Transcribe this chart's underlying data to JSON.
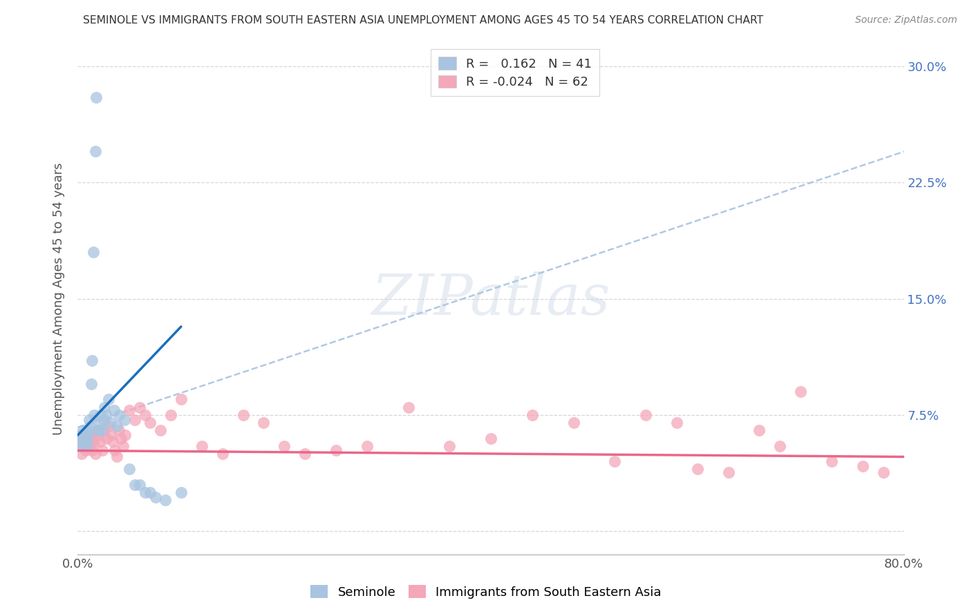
{
  "title": "SEMINOLE VS IMMIGRANTS FROM SOUTH EASTERN ASIA UNEMPLOYMENT AMONG AGES 45 TO 54 YEARS CORRELATION CHART",
  "source": "Source: ZipAtlas.com",
  "ylabel": "Unemployment Among Ages 45 to 54 years",
  "xlim": [
    0.0,
    0.8
  ],
  "ylim": [
    -0.015,
    0.315
  ],
  "xticks": [
    0.0,
    0.1,
    0.2,
    0.3,
    0.4,
    0.5,
    0.6,
    0.7,
    0.8
  ],
  "xticklabels": [
    "0.0%",
    "",
    "",
    "",
    "",
    "",
    "",
    "",
    "80.0%"
  ],
  "yticks": [
    0.0,
    0.075,
    0.15,
    0.225,
    0.3
  ],
  "yticklabels": [
    "",
    "7.5%",
    "15.0%",
    "22.5%",
    "30.0%"
  ],
  "seminole_R": 0.162,
  "seminole_N": 41,
  "immigrants_R": -0.024,
  "immigrants_N": 62,
  "seminole_color": "#a8c4e0",
  "immigrants_color": "#f4a7b9",
  "seminole_line_color": "#1a6fbb",
  "immigrants_line_color": "#e8688a",
  "dashed_line_color": "#a8c4e0",
  "watermark": "ZIPatlas",
  "background_color": "#ffffff",
  "seminole_line_x0": 0.0,
  "seminole_line_y0": 0.062,
  "seminole_line_x1": 0.1,
  "seminole_line_y1": 0.132,
  "dashed_line_x0": 0.0,
  "dashed_line_y0": 0.067,
  "dashed_line_x1": 0.8,
  "dashed_line_y1": 0.245,
  "immigrants_line_x0": 0.0,
  "immigrants_line_y0": 0.052,
  "immigrants_line_x1": 0.8,
  "immigrants_line_y1": 0.048,
  "seminole_x": [
    0.003,
    0.003,
    0.004,
    0.005,
    0.005,
    0.006,
    0.007,
    0.008,
    0.009,
    0.01,
    0.01,
    0.011,
    0.012,
    0.013,
    0.014,
    0.015,
    0.016,
    0.017,
    0.018,
    0.019,
    0.02,
    0.021,
    0.022,
    0.023,
    0.025,
    0.026,
    0.028,
    0.03,
    0.032,
    0.035,
    0.038,
    0.04,
    0.045,
    0.05,
    0.055,
    0.06,
    0.065,
    0.07,
    0.075,
    0.085,
    0.1
  ],
  "seminole_y": [
    0.062,
    0.055,
    0.058,
    0.065,
    0.06,
    0.057,
    0.063,
    0.06,
    0.055,
    0.065,
    0.06,
    0.072,
    0.068,
    0.095,
    0.11,
    0.18,
    0.075,
    0.245,
    0.28,
    0.065,
    0.065,
    0.07,
    0.075,
    0.065,
    0.072,
    0.08,
    0.075,
    0.085,
    0.07,
    0.078,
    0.068,
    0.075,
    0.072,
    0.04,
    0.03,
    0.03,
    0.025,
    0.025,
    0.022,
    0.02,
    0.025
  ],
  "immigrants_x": [
    0.003,
    0.004,
    0.005,
    0.006,
    0.007,
    0.008,
    0.009,
    0.01,
    0.011,
    0.012,
    0.013,
    0.014,
    0.015,
    0.016,
    0.017,
    0.018,
    0.02,
    0.022,
    0.024,
    0.026,
    0.028,
    0.03,
    0.032,
    0.034,
    0.036,
    0.038,
    0.04,
    0.042,
    0.044,
    0.046,
    0.05,
    0.055,
    0.06,
    0.065,
    0.07,
    0.08,
    0.09,
    0.1,
    0.12,
    0.14,
    0.16,
    0.18,
    0.2,
    0.22,
    0.25,
    0.28,
    0.32,
    0.36,
    0.4,
    0.44,
    0.48,
    0.52,
    0.55,
    0.58,
    0.6,
    0.63,
    0.66,
    0.68,
    0.7,
    0.73,
    0.76,
    0.78
  ],
  "immigrants_y": [
    0.055,
    0.05,
    0.06,
    0.055,
    0.058,
    0.052,
    0.062,
    0.057,
    0.055,
    0.062,
    0.058,
    0.052,
    0.062,
    0.057,
    0.05,
    0.065,
    0.062,
    0.058,
    0.052,
    0.065,
    0.06,
    0.068,
    0.062,
    0.058,
    0.052,
    0.048,
    0.065,
    0.06,
    0.055,
    0.062,
    0.078,
    0.072,
    0.08,
    0.075,
    0.07,
    0.065,
    0.075,
    0.085,
    0.055,
    0.05,
    0.075,
    0.07,
    0.055,
    0.05,
    0.052,
    0.055,
    0.08,
    0.055,
    0.06,
    0.075,
    0.07,
    0.045,
    0.075,
    0.07,
    0.04,
    0.038,
    0.065,
    0.055,
    0.09,
    0.045,
    0.042,
    0.038
  ]
}
